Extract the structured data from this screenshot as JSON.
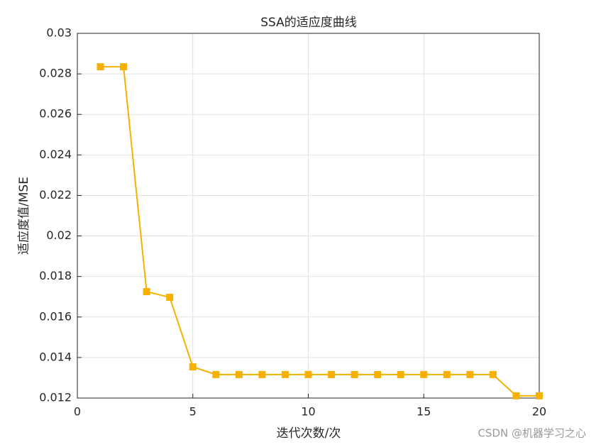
{
  "chart_data": {
    "type": "line",
    "title": "SSA的适应度曲线",
    "xlabel": "迭代次数/次",
    "ylabel": "适应度值/MSE",
    "x": [
      1,
      2,
      3,
      4,
      5,
      6,
      7,
      8,
      9,
      10,
      11,
      12,
      13,
      14,
      15,
      16,
      17,
      18,
      19,
      20
    ],
    "values": [
      0.02835,
      0.02835,
      0.01725,
      0.01697,
      0.01354,
      0.01316,
      0.01316,
      0.01316,
      0.01316,
      0.01316,
      0.01316,
      0.01316,
      0.01316,
      0.01316,
      0.01316,
      0.01316,
      0.01316,
      0.01316,
      0.01211,
      0.01211
    ],
    "color": "#f5b000",
    "xlim": [
      0,
      20
    ],
    "xticks": [
      0,
      5,
      10,
      15,
      20
    ],
    "ylim": [
      0.012,
      0.03
    ],
    "yticks": [
      0.012,
      0.014,
      0.016,
      0.018,
      0.02,
      0.022,
      0.024,
      0.026,
      0.028,
      0.03
    ],
    "grid": true,
    "watermark": "CSDN @机器学习之心"
  }
}
